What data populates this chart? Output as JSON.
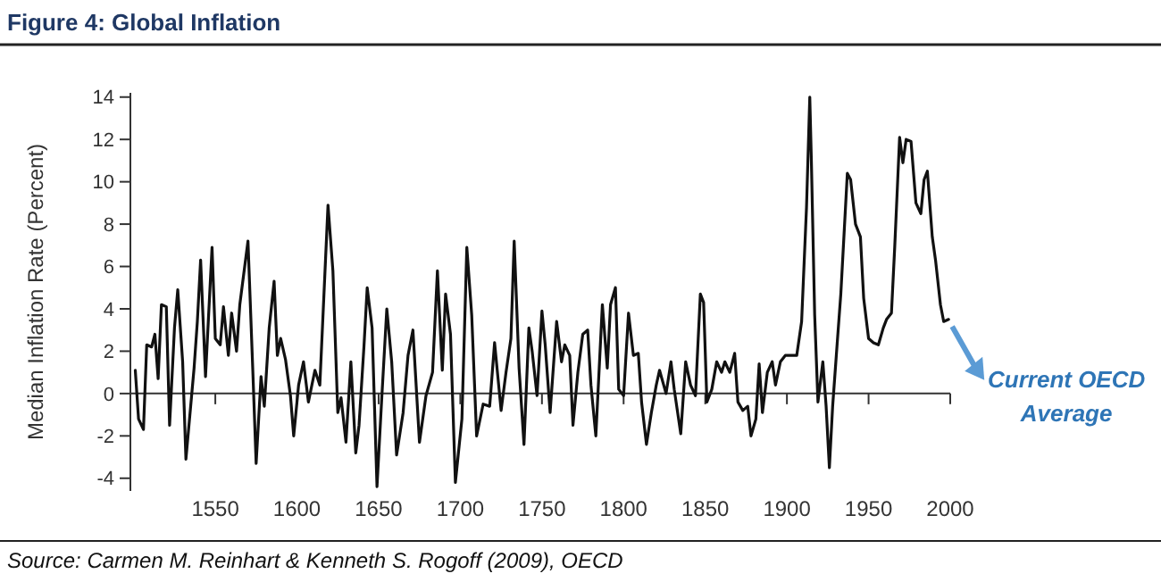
{
  "chart_data": {
    "type": "line",
    "title": "Figure 4:  Global Inflation",
    "ylabel": "Median Inflation Rate (Percent)",
    "annotations": [
      {
        "text": "Current OECD Average",
        "x": 1999,
        "y": 3.5
      },
      "Source: Carmen M. Reinhart & Kenneth S. Rogoff (2009), OECD"
    ],
    "xlim": [
      1498,
      2000
    ],
    "xticks": [
      1550,
      1600,
      1650,
      1700,
      1750,
      1800,
      1850,
      1900,
      1950,
      2000
    ],
    "ylim": [
      -4.6,
      14.2
    ],
    "yticks": [
      -4,
      -2,
      0,
      2,
      4,
      6,
      8,
      10,
      12,
      14
    ],
    "marker": "none",
    "line_style": "solid",
    "series": [
      {
        "color": "#111111",
        "x": [
          1501,
          1503,
          1506,
          1508,
          1511,
          1513,
          1515,
          1517,
          1520,
          1522,
          1525,
          1527,
          1530,
          1532,
          1537,
          1539,
          1541,
          1544,
          1548,
          1550,
          1553,
          1555,
          1558,
          1560,
          1563,
          1565,
          1570,
          1573,
          1575,
          1578,
          1580,
          1583,
          1586,
          1588,
          1590,
          1593,
          1596,
          1598,
          1601,
          1604,
          1607,
          1611,
          1614,
          1619,
          1622,
          1625,
          1627,
          1630,
          1633,
          1636,
          1638,
          1641,
          1643,
          1646,
          1649,
          1652,
          1655,
          1658,
          1661,
          1665,
          1668,
          1671,
          1675,
          1679,
          1683,
          1686,
          1689,
          1691,
          1694,
          1697,
          1701,
          1704,
          1707,
          1710,
          1714,
          1718,
          1721,
          1725,
          1728,
          1731,
          1733,
          1736,
          1739,
          1742,
          1744,
          1747,
          1750,
          1752,
          1755,
          1759,
          1762,
          1764,
          1767,
          1769,
          1772,
          1775,
          1778,
          1780,
          1783,
          1787,
          1790,
          1792,
          1795,
          1797,
          1800,
          1803,
          1806,
          1809,
          1811,
          1814,
          1817,
          1820,
          1822,
          1826,
          1829,
          1831,
          1835,
          1838,
          1841,
          1844,
          1847,
          1849,
          1851,
          1854,
          1857,
          1860,
          1862,
          1865,
          1868,
          1870,
          1873,
          1876,
          1878,
          1881,
          1883,
          1885,
          1888,
          1891,
          1893,
          1896,
          1899,
          1903,
          1906,
          1909,
          1912,
          1914,
          1915,
          1917,
          1919,
          1922,
          1924,
          1926,
          1928,
          1931,
          1933,
          1937,
          1939,
          1942,
          1945,
          1947,
          1950,
          1953,
          1956,
          1959,
          1961,
          1964,
          1966,
          1969,
          1971,
          1973,
          1976,
          1979,
          1982,
          1984,
          1986,
          1989,
          1991,
          1994,
          1996,
          1999
        ],
        "values": [
          1.1,
          -1.2,
          -1.7,
          2.3,
          2.2,
          2.8,
          0.7,
          4.2,
          4.1,
          -1.5,
          3.1,
          4.9,
          1.5,
          -3.1,
          1.2,
          3.4,
          6.3,
          0.8,
          6.9,
          2.6,
          2.3,
          4.1,
          1.8,
          3.8,
          2.0,
          4.2,
          7.2,
          1.0,
          -3.3,
          0.8,
          -0.6,
          3.1,
          5.3,
          1.8,
          2.6,
          1.6,
          -0.1,
          -2.0,
          0.4,
          1.5,
          -0.4,
          1.1,
          0.4,
          8.9,
          5.8,
          -0.9,
          -0.2,
          -2.3,
          1.5,
          -2.8,
          -1.5,
          2.2,
          5.0,
          3.1,
          -4.4,
          -0.1,
          4.0,
          1.5,
          -2.9,
          -0.9,
          1.8,
          3.0,
          -2.3,
          -0.1,
          1.0,
          5.8,
          1.1,
          4.7,
          2.8,
          -4.2,
          -1.2,
          6.9,
          3.7,
          -2.0,
          -0.5,
          -0.6,
          2.4,
          -0.8,
          1.0,
          2.6,
          7.2,
          1.2,
          -2.4,
          3.1,
          2.0,
          -0.1,
          3.9,
          2.3,
          -0.9,
          3.4,
          1.5,
          2.3,
          1.8,
          -1.5,
          1.0,
          2.8,
          3.0,
          0.4,
          -2.0,
          4.2,
          1.2,
          4.2,
          5.0,
          0.2,
          -0.1,
          3.8,
          1.8,
          1.9,
          -0.4,
          -2.4,
          -0.9,
          0.4,
          1.1,
          0.0,
          1.5,
          0.2,
          -1.9,
          1.5,
          0.4,
          -0.1,
          4.7,
          4.3,
          -0.4,
          0.2,
          1.5,
          1.0,
          1.5,
          1.0,
          1.9,
          -0.4,
          -0.8,
          -0.6,
          -2.0,
          -1.2,
          1.4,
          -0.9,
          1.0,
          1.5,
          0.4,
          1.5,
          1.8,
          1.8,
          1.8,
          3.4,
          8.8,
          14.0,
          10.9,
          3.7,
          -0.4,
          1.5,
          -0.6,
          -3.5,
          -0.6,
          2.6,
          4.7,
          10.4,
          10.1,
          8.0,
          7.4,
          4.5,
          2.6,
          2.4,
          2.3,
          3.1,
          3.5,
          3.8,
          6.9,
          12.1,
          10.9,
          12.0,
          11.9,
          9.0,
          8.5,
          10.1,
          10.5,
          7.4,
          6.3,
          4.2,
          3.4,
          3.5
        ]
      }
    ]
  }
}
